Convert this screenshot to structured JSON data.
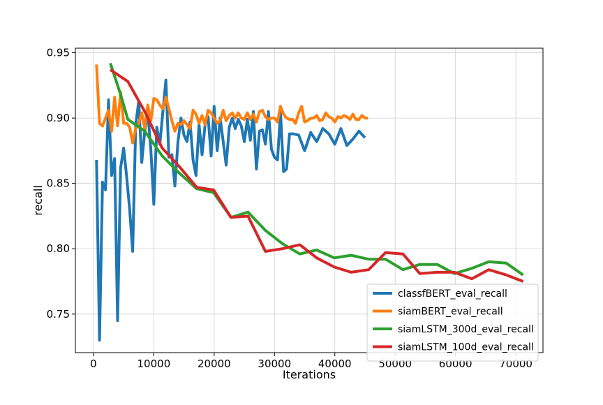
{
  "chart_data": {
    "type": "line",
    "title": "",
    "xlabel": "Iterations",
    "ylabel": "recall",
    "xlim": [
      -3000,
      74500
    ],
    "ylim": [
      0.7205,
      0.9535
    ],
    "xticks": [
      0,
      10000,
      20000,
      30000,
      40000,
      50000,
      60000,
      70000
    ],
    "yticks": [
      0.75,
      0.8,
      0.85,
      0.9,
      0.95
    ],
    "xtick_labels": [
      "0",
      "10000",
      "20000",
      "30000",
      "40000",
      "50000",
      "60000",
      "70000"
    ],
    "ytick_labels": [
      "0.75",
      "0.80",
      "0.85",
      "0.90",
      "0.95"
    ],
    "grid": true,
    "legend_position": "lower-right",
    "series": [
      {
        "name": "classfBERT_eval_recall",
        "color": "#1f77b4",
        "x": [
          500,
          1000,
          1500,
          2000,
          2500,
          3000,
          3500,
          4000,
          4500,
          5000,
          5500,
          6000,
          6500,
          7000,
          7500,
          8000,
          8500,
          9000,
          9500,
          10000,
          10500,
          11000,
          11500,
          12000,
          12500,
          13000,
          13500,
          14000,
          14500,
          15000,
          15500,
          16000,
          16500,
          17000,
          17500,
          18000,
          18500,
          19000,
          19500,
          20000,
          20500,
          21000,
          21500,
          22000,
          22500,
          23000,
          23500,
          24000,
          24500,
          25000,
          25500,
          26000,
          26500,
          27000,
          27500,
          28000,
          28500,
          29000,
          29500,
          30000,
          30500,
          31000,
          31500,
          32000,
          32500,
          33000,
          34000,
          35000,
          36000,
          37000,
          38000,
          39000,
          40000,
          41000,
          42000,
          43000,
          44000,
          45000
        ],
        "y": [
          0.868,
          0.73,
          0.851,
          0.845,
          0.914,
          0.856,
          0.869,
          0.745,
          0.862,
          0.877,
          0.855,
          0.83,
          0.798,
          0.895,
          0.913,
          0.866,
          0.89,
          0.905,
          0.876,
          0.834,
          0.893,
          0.88,
          0.905,
          0.929,
          0.87,
          0.872,
          0.848,
          0.882,
          0.9,
          0.887,
          0.882,
          0.897,
          0.868,
          0.856,
          0.895,
          0.872,
          0.895,
          0.901,
          0.871,
          0.909,
          0.875,
          0.9,
          0.882,
          0.864,
          0.893,
          0.9,
          0.892,
          0.899,
          0.894,
          0.882,
          0.899,
          0.883,
          0.905,
          0.861,
          0.89,
          0.891,
          0.88,
          0.905,
          0.876,
          0.87,
          0.868,
          0.904,
          0.859,
          0.861,
          0.888,
          0.888,
          0.887,
          0.875,
          0.889,
          0.882,
          0.892,
          0.888,
          0.88,
          0.892,
          0.879,
          0.884,
          0.89,
          0.885
        ]
      },
      {
        "name": "siamBERT_eval_recall",
        "color": "#ff7f0e",
        "x": [
          500,
          1000,
          1500,
          2000,
          2500,
          3000,
          3500,
          4000,
          4500,
          5000,
          5500,
          6000,
          6500,
          7000,
          7500,
          8000,
          8500,
          9000,
          9500,
          10000,
          10500,
          11000,
          11500,
          12000,
          12500,
          13000,
          13500,
          14000,
          14500,
          15000,
          15500,
          16000,
          16500,
          17000,
          17500,
          18000,
          18500,
          19000,
          19500,
          20000,
          20500,
          21000,
          21500,
          22000,
          22500,
          23000,
          23500,
          24000,
          24500,
          25000,
          25500,
          26000,
          26500,
          27000,
          27500,
          28000,
          28500,
          29000,
          29500,
          30000,
          30500,
          31000,
          31500,
          32000,
          32500,
          33000,
          33500,
          34000,
          34500,
          35000,
          35500,
          36000,
          36500,
          37000,
          37500,
          38000,
          38500,
          39000,
          39500,
          40000,
          40500,
          41000,
          41500,
          42000,
          42500,
          43000,
          43500,
          44000,
          44500,
          45000,
          45500
        ],
        "y": [
          0.941,
          0.896,
          0.894,
          0.9,
          0.906,
          0.89,
          0.916,
          0.894,
          0.92,
          0.896,
          0.896,
          0.893,
          0.881,
          0.892,
          0.896,
          0.904,
          0.892,
          0.91,
          0.898,
          0.915,
          0.914,
          0.91,
          0.907,
          0.916,
          0.907,
          0.898,
          0.89,
          0.896,
          0.895,
          0.898,
          0.895,
          0.892,
          0.906,
          0.903,
          0.896,
          0.902,
          0.895,
          0.906,
          0.904,
          0.9,
          0.896,
          0.898,
          0.906,
          0.898,
          0.902,
          0.904,
          0.9,
          0.904,
          0.9,
          0.899,
          0.904,
          0.899,
          0.903,
          0.897,
          0.905,
          0.906,
          0.901,
          0.899,
          0.9,
          0.9,
          0.897,
          0.909,
          0.903,
          0.9,
          0.899,
          0.899,
          0.896,
          0.904,
          0.909,
          0.897,
          0.898,
          0.9,
          0.9,
          0.902,
          0.898,
          0.899,
          0.904,
          0.901,
          0.9,
          0.897,
          0.901,
          0.9,
          0.902,
          0.901,
          0.899,
          0.903,
          0.899,
          0.899,
          0.902,
          0.9,
          0.9
        ]
      },
      {
        "name": "siamLSTM_300d_eval_recall",
        "color": "#2ca02c",
        "x": [
          2800,
          4500,
          5700,
          8500,
          11400,
          14200,
          17100,
          19900,
          22800,
          25600,
          28500,
          31300,
          34200,
          37000,
          39900,
          42700,
          45600,
          48400,
          51300,
          54100,
          57000,
          59800,
          62700,
          65500,
          68400,
          71200
        ],
        "y": [
          0.942,
          0.918,
          0.899,
          0.89,
          0.871,
          0.858,
          0.846,
          0.843,
          0.824,
          0.828,
          0.814,
          0.804,
          0.796,
          0.799,
          0.793,
          0.795,
          0.792,
          0.792,
          0.784,
          0.788,
          0.788,
          0.781,
          0.785,
          0.79,
          0.789,
          0.78
        ]
      },
      {
        "name": "siamLSTM_100d_eval_recall",
        "color": "#d62728",
        "x": [
          2800,
          5700,
          8500,
          11400,
          14200,
          17100,
          19900,
          22800,
          25600,
          28500,
          31300,
          34200,
          37000,
          39900,
          42700,
          45600,
          48400,
          51300,
          54100,
          57000,
          59800,
          62700,
          65500,
          68400,
          71200
        ],
        "y": [
          0.937,
          0.928,
          0.905,
          0.877,
          0.863,
          0.847,
          0.845,
          0.824,
          0.825,
          0.798,
          0.8,
          0.803,
          0.793,
          0.786,
          0.782,
          0.784,
          0.797,
          0.796,
          0.781,
          0.782,
          0.782,
          0.777,
          0.784,
          0.78,
          0.775
        ]
      }
    ]
  }
}
